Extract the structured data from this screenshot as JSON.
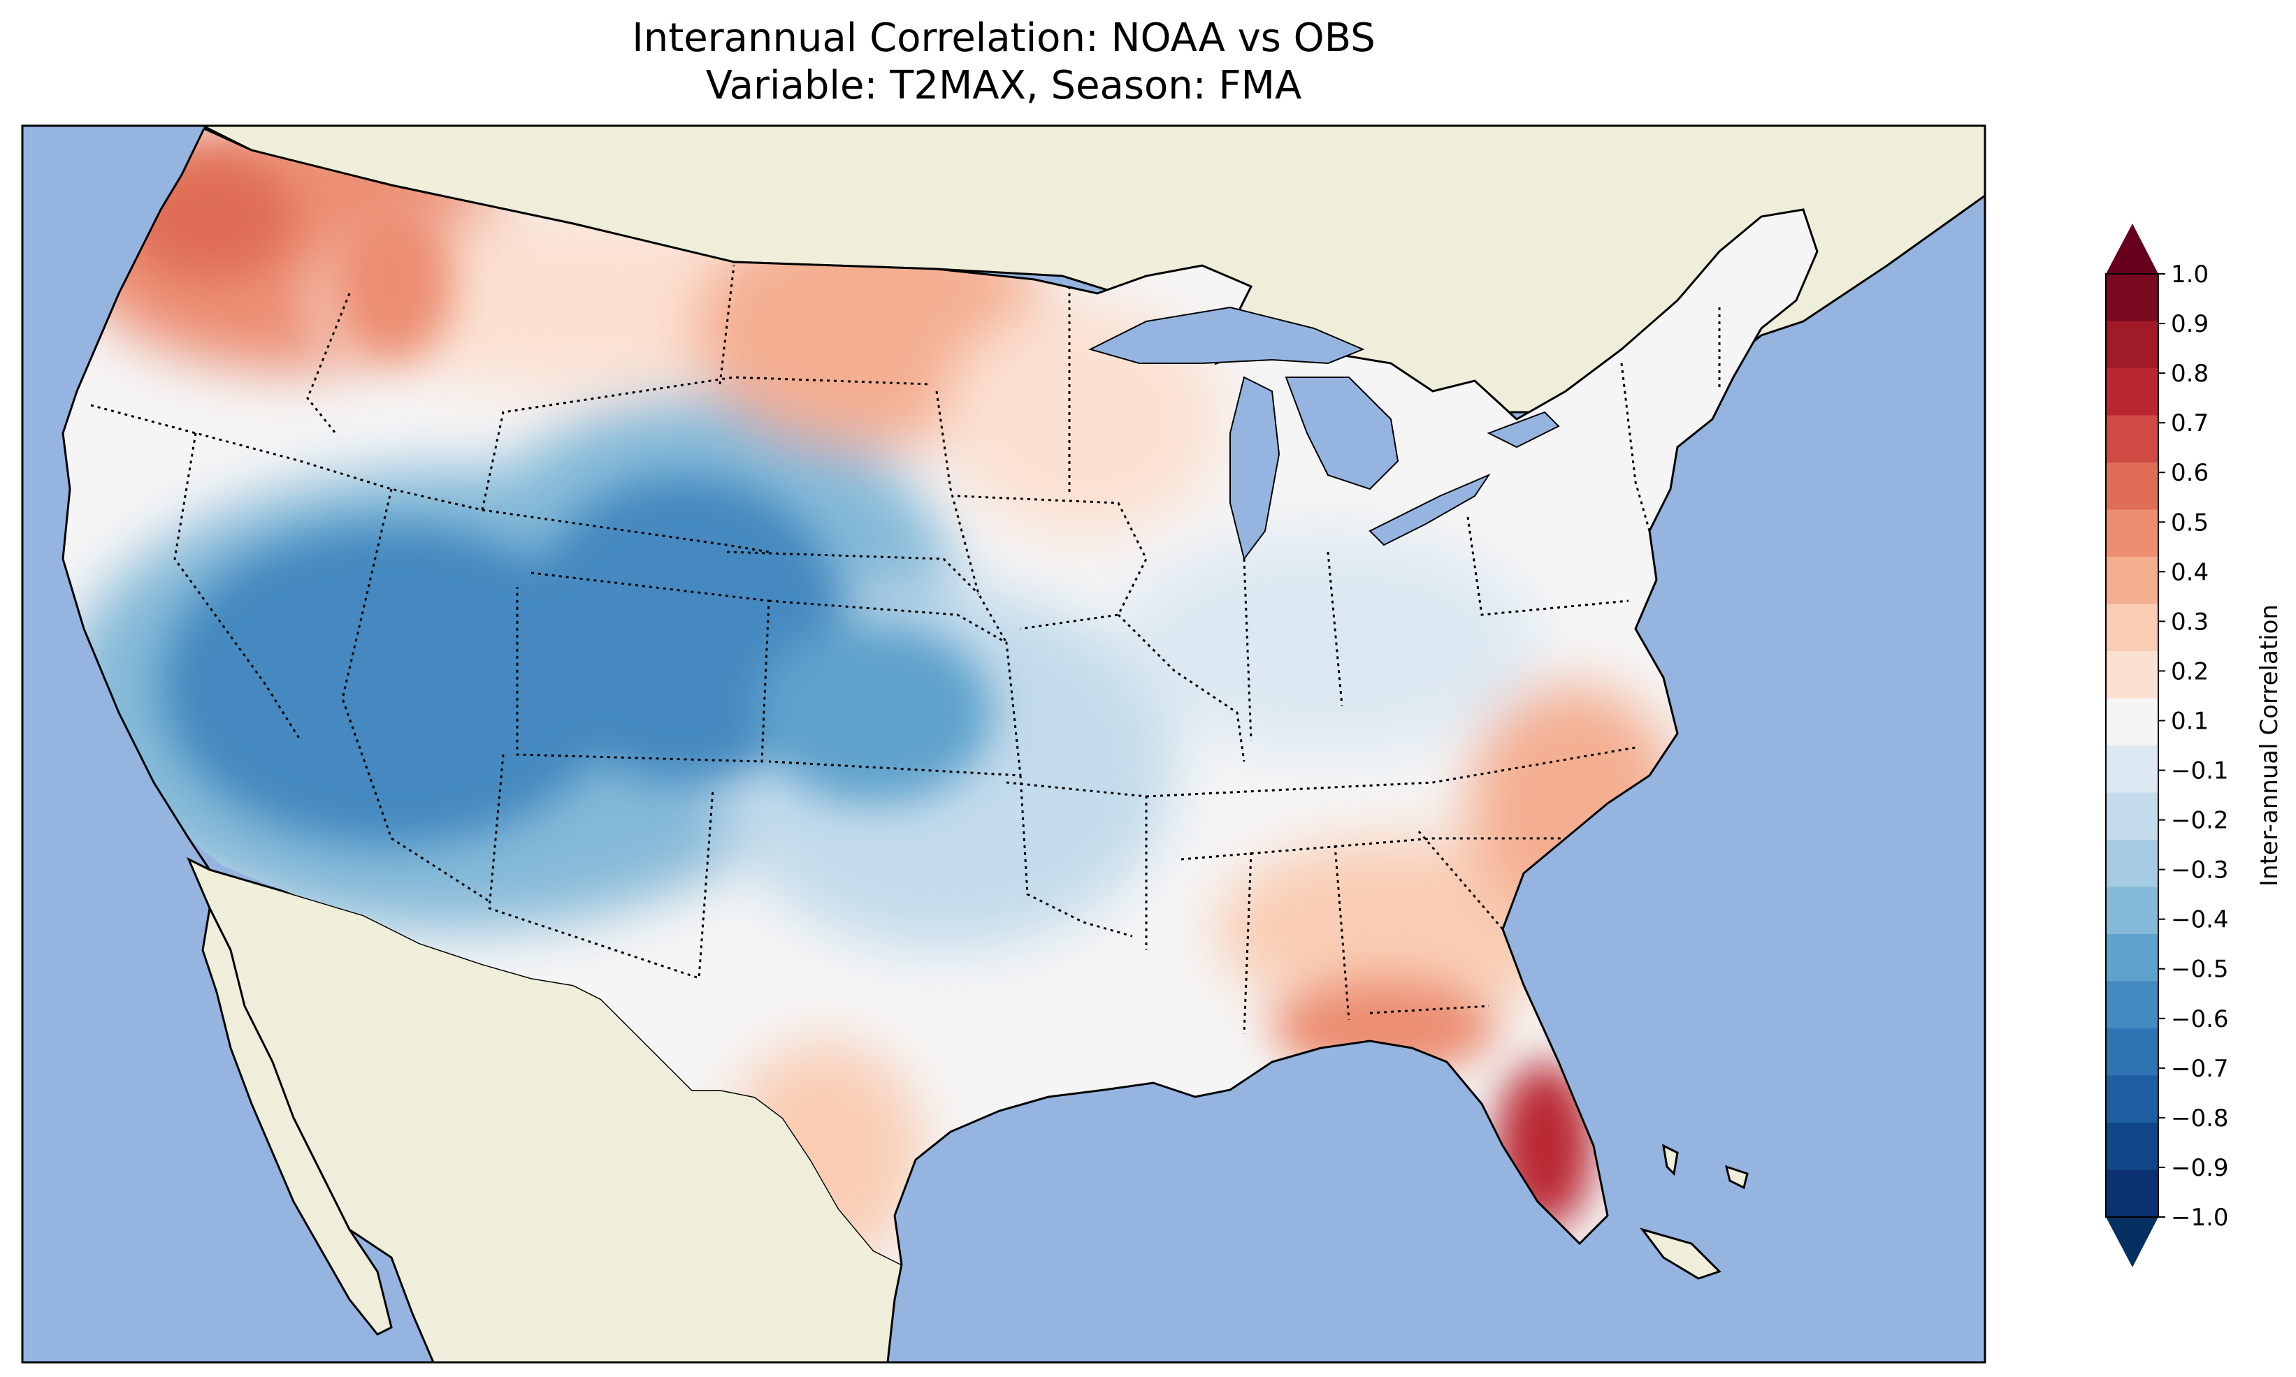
{
  "title": {
    "line1": "Interannual Correlation: NOAA vs OBS",
    "line2": "Variable: T2MAX, Season: FMA"
  },
  "map": {
    "region": "Contiguous United States",
    "projection": "Lambert-style conus",
    "ocean_color": "#95b4e0",
    "land_color": "#efeedb",
    "borders": "dotted state lines, solid country/coast lines"
  },
  "colorbar": {
    "label": "Inter-annual Correlation",
    "min": -1.0,
    "max": 1.0,
    "extend": "both",
    "ticks": [
      "1.0",
      "0.9",
      "0.8",
      "0.7",
      "0.6",
      "0.5",
      "0.4",
      "0.3",
      "0.2",
      "0.1",
      "−0.1",
      "−0.2",
      "−0.3",
      "−0.4",
      "−0.5",
      "−0.6",
      "−0.7",
      "−0.8",
      "−0.9",
      "−1.0"
    ],
    "colors": [
      "#7a0a1f",
      "#a11a28",
      "#b92830",
      "#cf4a42",
      "#df6d57",
      "#ec8e72",
      "#f4ae90",
      "#f9cdb4",
      "#fbe1d2",
      "#f5f5f5",
      "#dde9f2",
      "#c3dbeb",
      "#a5cbe2",
      "#84b9d8",
      "#5fa2cc",
      "#4489c0",
      "#2f73b3",
      "#1f5ea1",
      "#12468a",
      "#0b3170"
    ],
    "upper_extension_color": "#67001f",
    "lower_extension_color": "#053061"
  },
  "chart_data": {
    "type": "heatmap",
    "description_of_values": "contour-filled correlation field",
    "regions": [
      {
        "area": "Pacific Northwest / Washington",
        "value": 0.5
      },
      {
        "area": "Idaho / western Montana",
        "value": 0.5
      },
      {
        "area": "Northern Plains (North Dakota, South Dakota, Minnesota)",
        "value": 0.3
      },
      {
        "area": "Wisconsin / Iowa",
        "value": 0.2
      },
      {
        "area": "California / Nevada",
        "value": -0.6
      },
      {
        "area": "Utah / Arizona",
        "value": -0.6
      },
      {
        "area": "Colorado / Kansas",
        "value": -0.6
      },
      {
        "area": "Southern Plains / Texas panhandle",
        "value": -0.4
      },
      {
        "area": "Ohio Valley / Mid-Atlantic",
        "value": -0.1
      },
      {
        "area": "Southeast / Carolinas coast",
        "value": 0.3
      },
      {
        "area": "Florida peninsula",
        "value": 0.8
      },
      {
        "area": "South Texas",
        "value": 0.3
      }
    ]
  }
}
